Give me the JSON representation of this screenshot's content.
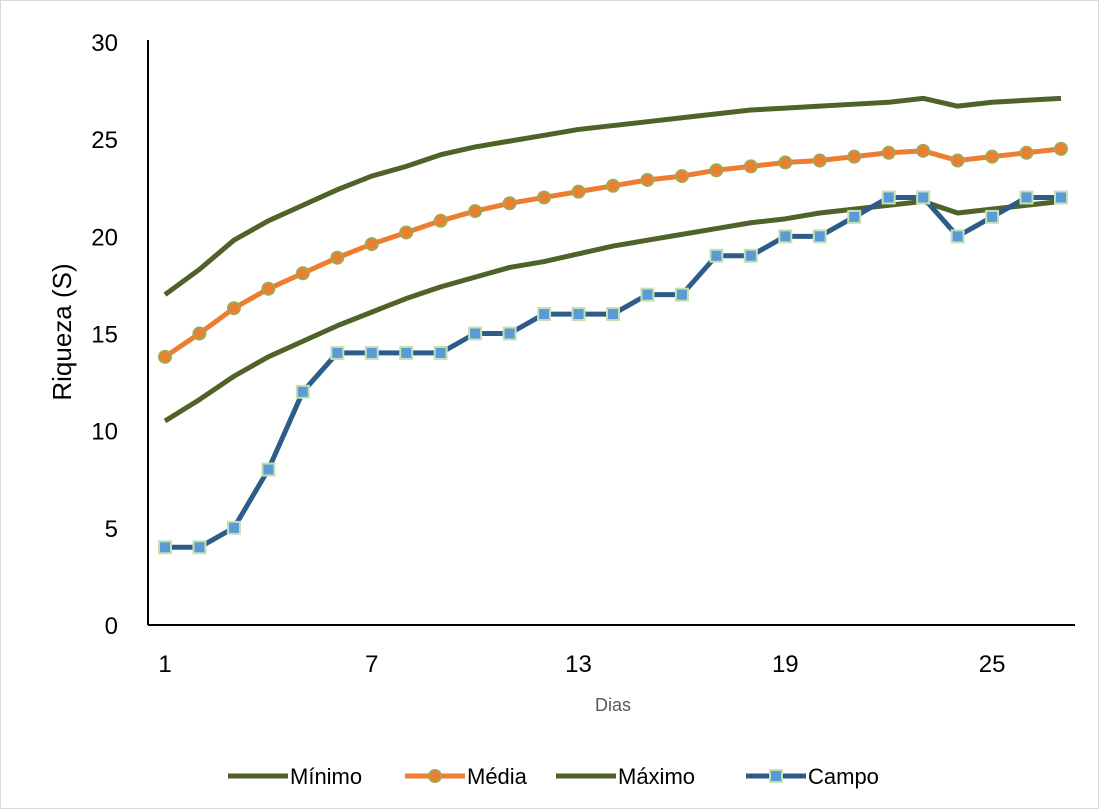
{
  "chart_data": {
    "type": "line",
    "title": "",
    "xlabel": "Dias",
    "ylabel": "Riqueza (S)",
    "x": [
      1,
      2,
      3,
      4,
      5,
      6,
      7,
      8,
      9,
      10,
      11,
      12,
      13,
      14,
      15,
      16,
      17,
      18,
      19,
      20,
      21,
      22,
      23,
      24,
      25,
      26,
      27
    ],
    "x_tick_labels": [
      "1",
      "7",
      "13",
      "19",
      "25"
    ],
    "x_ticks": [
      1,
      7,
      13,
      19,
      25
    ],
    "ylim": [
      0,
      30
    ],
    "y_ticks": [
      0,
      5,
      10,
      15,
      20,
      25,
      30
    ],
    "legend_position": "bottom",
    "grid": false,
    "series": [
      {
        "name": "Mínimo",
        "color": "#4f6228",
        "marker": "none",
        "values": [
          10.5,
          11.6,
          12.8,
          13.8,
          14.6,
          15.4,
          16.1,
          16.8,
          17.4,
          17.9,
          18.4,
          18.7,
          19.1,
          19.5,
          19.8,
          20.1,
          20.4,
          20.7,
          20.9,
          21.2,
          21.4,
          21.6,
          21.8,
          21.2,
          21.4,
          21.6,
          21.8
        ]
      },
      {
        "name": "Média",
        "color": "#ed7d31",
        "marker": "circle",
        "values": [
          13.8,
          15.0,
          16.3,
          17.3,
          18.1,
          18.9,
          19.6,
          20.2,
          20.8,
          21.3,
          21.7,
          22.0,
          22.3,
          22.6,
          22.9,
          23.1,
          23.4,
          23.6,
          23.8,
          23.9,
          24.1,
          24.3,
          24.4,
          23.9,
          24.1,
          24.3,
          24.5
        ]
      },
      {
        "name": "Máximo",
        "color": "#4f6228",
        "marker": "none",
        "values": [
          17.0,
          18.3,
          19.8,
          20.8,
          21.6,
          22.4,
          23.1,
          23.6,
          24.2,
          24.6,
          24.9,
          25.2,
          25.5,
          25.7,
          25.9,
          26.1,
          26.3,
          26.5,
          26.6,
          26.7,
          26.8,
          26.9,
          27.1,
          26.7,
          26.9,
          27.0,
          27.1
        ]
      },
      {
        "name": "Campo",
        "color": "#2e5c8a",
        "marker": "square",
        "values": [
          4,
          4,
          5,
          8,
          12,
          14,
          14,
          14,
          14,
          15,
          15,
          16,
          16,
          16,
          17,
          17,
          19,
          19,
          20,
          20,
          21,
          22,
          22,
          20,
          21,
          22,
          22
        ]
      }
    ]
  }
}
